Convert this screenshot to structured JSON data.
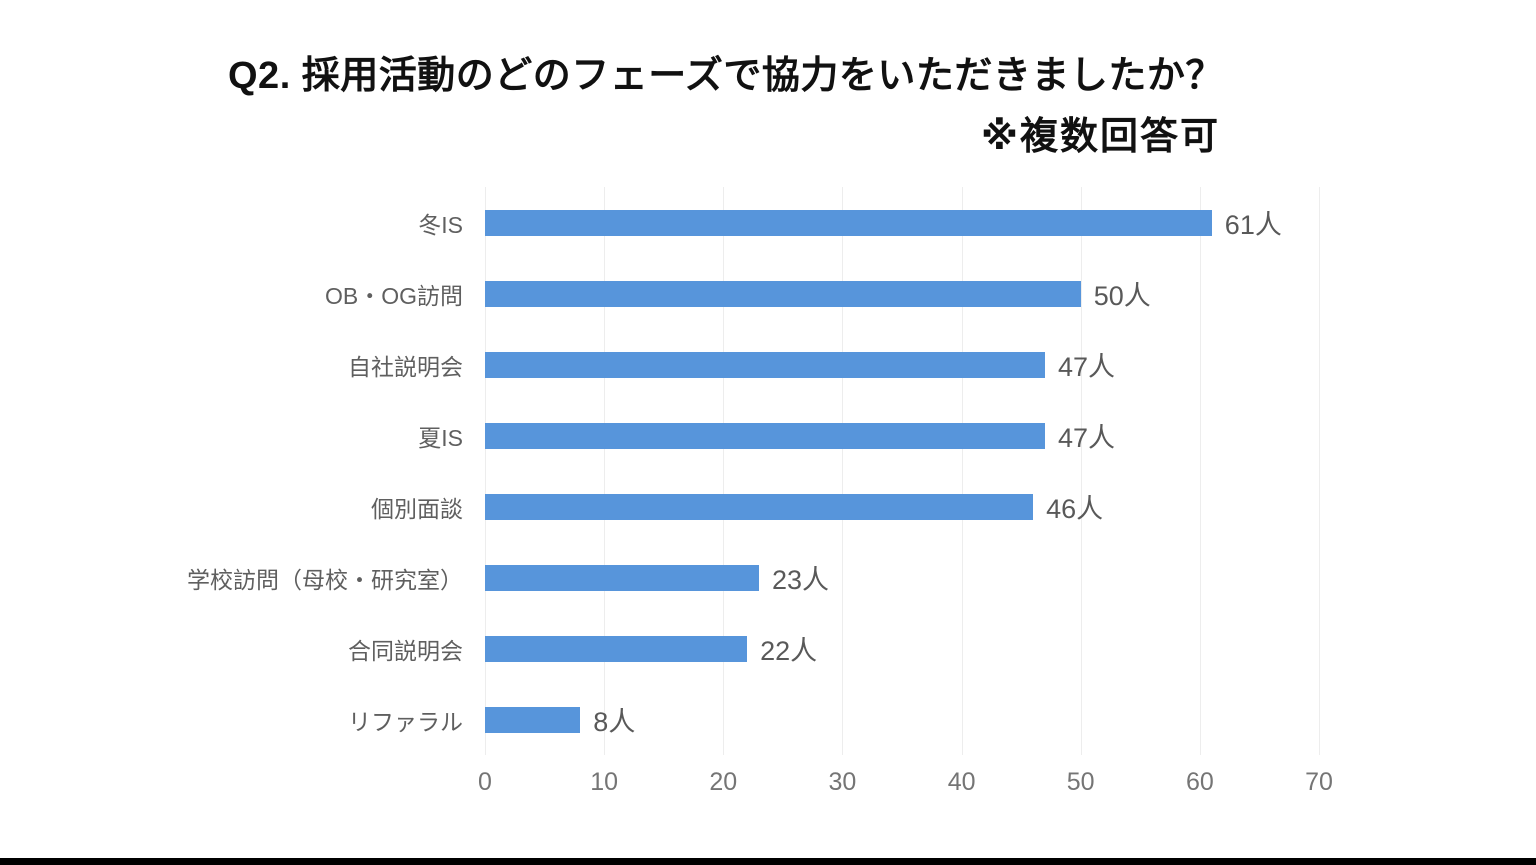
{
  "title": {
    "line1": "Q2. 採用活動のどのフェーズで協力をいただきましたか？",
    "line2": "※複数回答可"
  },
  "chart_data": {
    "type": "bar",
    "orientation": "horizontal",
    "title": "Q2. 採用活動のどのフェーズで協力をいただきましたか？",
    "subtitle": "※複数回答可",
    "categories": [
      "冬IS",
      "OB・OG訪問",
      "自社説明会",
      "夏IS",
      "個別面談",
      "学校訪問（母校・研究室）",
      "合同説明会",
      "リファラル"
    ],
    "values": [
      61,
      50,
      47,
      47,
      46,
      23,
      22,
      8
    ],
    "value_labels": [
      "61人",
      "50人",
      "47人",
      "47人",
      "46人",
      "23人",
      "22人",
      "8人"
    ],
    "unit": "人",
    "x_ticks": [
      "0",
      "10",
      "20",
      "30",
      "40",
      "50",
      "60",
      "70"
    ],
    "xlim": [
      0,
      70
    ],
    "grid": true,
    "legend": "none",
    "bar_color": "#5795DB"
  },
  "colors": {
    "background": "#ffffff",
    "bar": "#5795DB",
    "title_text": "#111111",
    "category_label": "#5f5f5f",
    "value_label": "#595959",
    "tick_label": "#757575",
    "gridline": "#ededed",
    "bottom_bar": "#000000"
  }
}
